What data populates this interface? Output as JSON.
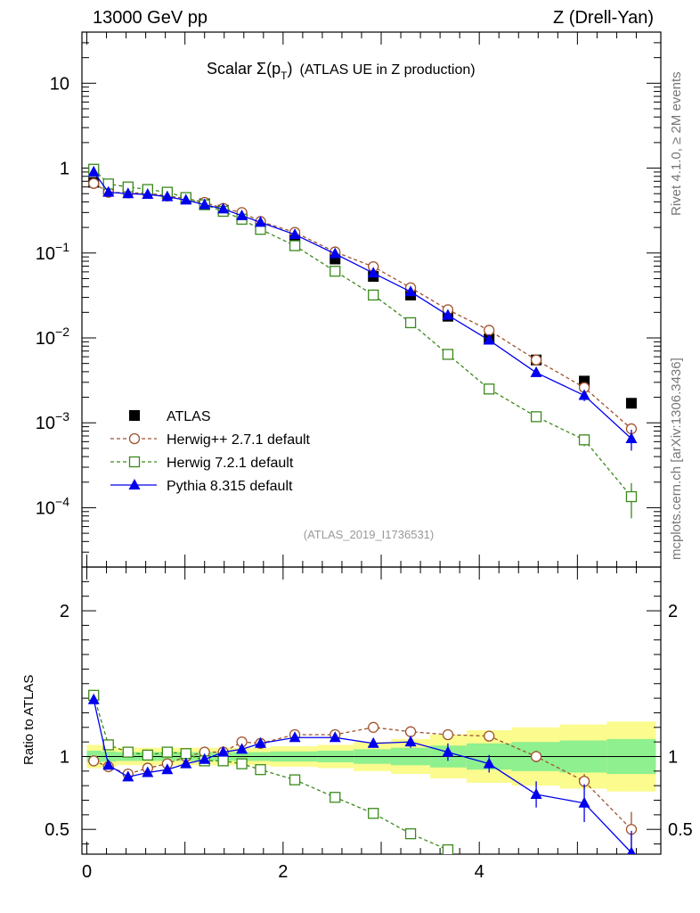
{
  "header": {
    "left": "13000 GeV pp",
    "right": "Z (Drell-Yan)"
  },
  "side_labels": {
    "rivet": "Rivet 4.1.0, ≥ 2M events",
    "mcplots": "mcplots.cern.ch [arXiv:1306.3436]"
  },
  "plot_title": {
    "main": "Scalar Σ(p",
    "sub": "T",
    "close": ")",
    "suffix": "(ATLAS UE in Z production)"
  },
  "analysis_ref": "(ATLAS_2019_I1736531)",
  "ratio_ylabel": "Ratio to ATLAS",
  "colors": {
    "atlas": "#000000",
    "herwigpp": "#a0522d",
    "herwig7": "#3a8a1a",
    "pythia": "#0000ee",
    "band_inner": "#8ef08e",
    "band_outer": "#fbfb8e"
  },
  "chart_data": [
    {
      "type": "scatter",
      "panel": "main",
      "yscale": "log",
      "xlim": [
        -0.05,
        5.85
      ],
      "ylim": [
        2e-05,
        40
      ],
      "xticks": [
        0,
        2,
        4
      ],
      "ytick_labels": [
        {
          "value": 10,
          "text": "10"
        },
        {
          "value": 1,
          "text": "1"
        },
        {
          "value": 0.1,
          "mant": "10",
          "exp": "−1"
        },
        {
          "value": 0.01,
          "mant": "10",
          "exp": "−2"
        },
        {
          "value": 0.001,
          "mant": "10",
          "exp": "−3"
        },
        {
          "value": 0.0001,
          "mant": "10",
          "exp": "−4"
        }
      ],
      "x": [
        0.07,
        0.22,
        0.42,
        0.62,
        0.82,
        1.01,
        1.2,
        1.39,
        1.58,
        1.77,
        2.12,
        2.53,
        2.92,
        3.3,
        3.68,
        4.1,
        4.58,
        5.07,
        5.55
      ],
      "series": [
        {
          "key": "atlas",
          "name": "ATLAS",
          "style": "square-filled",
          "values": [
            0.68,
            0.56,
            0.58,
            0.55,
            0.5,
            0.44,
            0.38,
            0.32,
            0.27,
            0.21,
            0.145,
            0.085,
            0.053,
            0.032,
            0.018,
            0.0097,
            0.0055,
            0.0031,
            0.0017
          ]
        },
        {
          "key": "herwigpp",
          "name": "Herwig++ 2.7.1 default",
          "style": "circle-open-dashed",
          "values": [
            0.66,
            0.52,
            0.51,
            0.51,
            0.47,
            0.44,
            0.395,
            0.335,
            0.3,
            0.235,
            0.175,
            0.103,
            0.069,
            0.039,
            0.0215,
            0.0123,
            0.0055,
            0.0026,
            0.00085
          ],
          "errors": [
            0,
            0,
            0,
            0,
            0,
            0,
            0,
            0,
            0,
            0,
            0,
            0,
            0,
            0,
            0,
            0,
            0,
            0,
            0.00012
          ]
        },
        {
          "key": "herwig7",
          "name": "Herwig 7.2.1 default",
          "style": "square-open-dashed",
          "values": [
            0.97,
            0.65,
            0.6,
            0.56,
            0.52,
            0.45,
            0.37,
            0.31,
            0.25,
            0.19,
            0.122,
            0.061,
            0.032,
            0.0151,
            0.0064,
            0.0025,
            0.00118,
            0.00063,
            0.000135
          ],
          "errors": [
            0,
            0,
            0,
            0,
            0,
            0,
            0,
            0,
            0,
            0,
            0,
            0,
            0,
            0,
            0,
            0,
            0,
            0.0001,
            6e-05
          ]
        },
        {
          "key": "pythia",
          "name": "Pythia 8.315 default",
          "style": "triangle-filled-solid",
          "values": [
            0.9,
            0.52,
            0.5,
            0.49,
            0.46,
            0.42,
            0.37,
            0.33,
            0.275,
            0.23,
            0.165,
            0.098,
            0.058,
            0.035,
            0.0185,
            0.0094,
            0.0039,
            0.0021,
            0.00065
          ],
          "errors": [
            0,
            0,
            0,
            0,
            0,
            0,
            0,
            0,
            0,
            0,
            0,
            0,
            0,
            0,
            0,
            0,
            0,
            0.0003,
            0.00018
          ]
        }
      ]
    },
    {
      "type": "scatter",
      "panel": "ratio",
      "xlim": [
        -0.05,
        5.85
      ],
      "ylim": [
        0.33,
        2.3
      ],
      "xticks": [
        0,
        2,
        4
      ],
      "yticks": [
        0.5,
        1,
        2
      ],
      "xbins": [
        [
          0,
          0.15
        ],
        [
          0.15,
          0.3
        ],
        [
          0.3,
          0.52
        ],
        [
          0.52,
          0.72
        ],
        [
          0.72,
          0.91
        ],
        [
          0.91,
          1.1
        ],
        [
          1.1,
          1.3
        ],
        [
          1.3,
          1.49
        ],
        [
          1.49,
          1.68
        ],
        [
          1.68,
          1.87
        ],
        [
          1.87,
          2.35
        ],
        [
          2.35,
          2.72
        ],
        [
          2.72,
          3.1
        ],
        [
          3.1,
          3.5
        ],
        [
          3.5,
          3.87
        ],
        [
          3.87,
          4.33
        ],
        [
          4.33,
          4.82
        ],
        [
          4.82,
          5.3
        ],
        [
          5.3,
          5.8
        ]
      ],
      "band_inner": [
        0.04,
        0.035,
        0.03,
        0.03,
        0.03,
        0.03,
        0.03,
        0.03,
        0.03,
        0.03,
        0.035,
        0.04,
        0.05,
        0.06,
        0.075,
        0.09,
        0.1,
        0.11,
        0.12
      ],
      "band_outer": [
        0.08,
        0.07,
        0.06,
        0.06,
        0.06,
        0.06,
        0.06,
        0.06,
        0.06,
        0.06,
        0.07,
        0.08,
        0.1,
        0.12,
        0.15,
        0.18,
        0.2,
        0.22,
        0.24
      ],
      "x": [
        0.07,
        0.22,
        0.42,
        0.62,
        0.82,
        1.01,
        1.2,
        1.39,
        1.58,
        1.77,
        2.12,
        2.53,
        2.92,
        3.3,
        3.68,
        4.1,
        4.58,
        5.07,
        5.55
      ],
      "series": [
        {
          "key": "herwigpp",
          "name": "Herwig++ 2.7.1 default",
          "values": [
            0.97,
            0.93,
            0.88,
            0.92,
            0.95,
            1.0,
            1.03,
            1.03,
            1.1,
            1.09,
            1.15,
            1.15,
            1.2,
            1.17,
            1.15,
            1.14,
            1.0,
            0.83,
            0.5
          ],
          "errors": [
            0,
            0,
            0,
            0,
            0,
            0,
            0,
            0,
            0,
            0,
            0,
            0,
            0,
            0,
            0.03,
            0.03,
            0.04,
            0.05,
            0.12
          ]
        },
        {
          "key": "herwig7",
          "name": "Herwig 7.2.1 default",
          "values": [
            1.42,
            1.08,
            1.03,
            1.01,
            1.03,
            1.02,
            0.97,
            0.97,
            0.95,
            0.91,
            0.84,
            0.72,
            0.61,
            0.47,
            0.36
          ],
          "xcut": 15,
          "errors": [
            0,
            0,
            0,
            0,
            0,
            0,
            0,
            0,
            0,
            0,
            0,
            0,
            0,
            0.02,
            0
          ]
        },
        {
          "key": "pythia",
          "name": "Pythia 8.315 default",
          "values": [
            1.39,
            0.94,
            0.86,
            0.89,
            0.91,
            0.95,
            0.98,
            1.03,
            1.05,
            1.09,
            1.13,
            1.13,
            1.09,
            1.1,
            1.03,
            0.95,
            0.74,
            0.68,
            0.34
          ],
          "errors": [
            0,
            0,
            0,
            0,
            0,
            0,
            0,
            0,
            0,
            0,
            0,
            0,
            0.03,
            0.04,
            0.06,
            0.06,
            0.09,
            0.13,
            0.15
          ]
        }
      ]
    }
  ]
}
